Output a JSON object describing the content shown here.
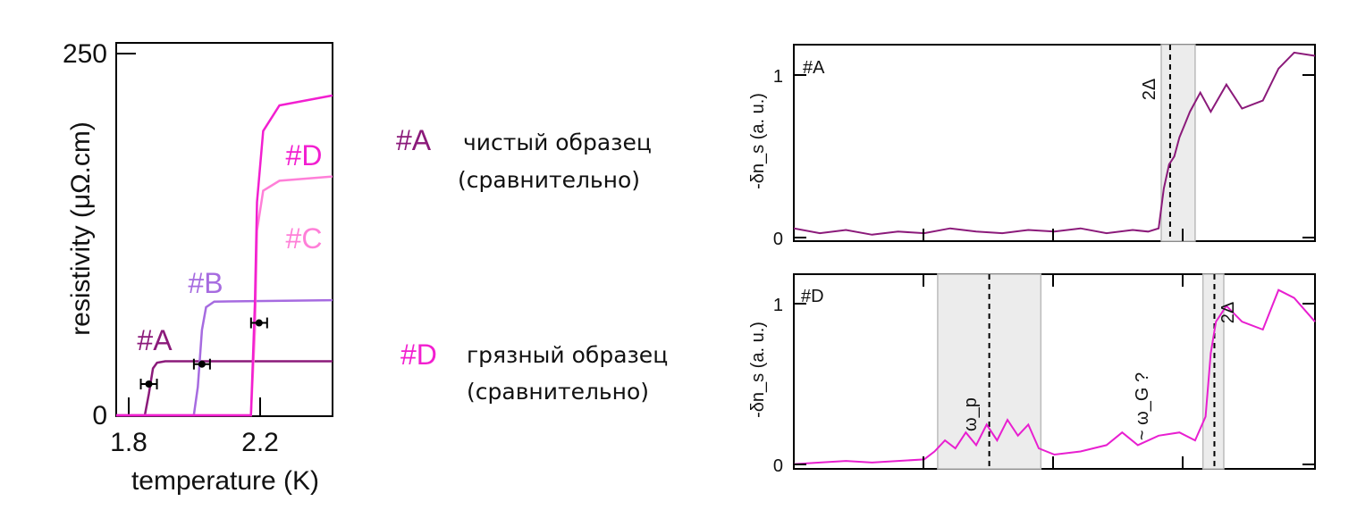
{
  "chart_data": [
    {
      "type": "line",
      "xlabel": "temperature (K)",
      "ylabel": "resistivity (μΩ.cm)",
      "xlim": [
        1.8,
        2.33
      ],
      "ylim": [
        0,
        262
      ],
      "xticks": [
        "1.8",
        "2.2"
      ],
      "yticks": [
        "0",
        "250"
      ],
      "series": [
        {
          "name": "#A",
          "color": "#8B1A7A",
          "x": [
            1.8,
            1.87,
            1.88,
            1.89,
            1.9,
            1.92,
            2.33
          ],
          "y": [
            0,
            0,
            15,
            33,
            37,
            38,
            38
          ]
        },
        {
          "name": "#B",
          "color": "#A66BE0",
          "x": [
            1.8,
            1.99,
            2.0,
            2.01,
            2.02,
            2.04,
            2.33
          ],
          "y": [
            0,
            0,
            20,
            60,
            76,
            80,
            81
          ]
        },
        {
          "name": "#C",
          "color": "#FF7FD8",
          "x": [
            1.8,
            2.13,
            2.14,
            2.145,
            2.16,
            2.2,
            2.33
          ],
          "y": [
            0,
            0,
            60,
            130,
            158,
            165,
            168
          ]
        },
        {
          "name": "#D",
          "color": "#F21FD0",
          "x": [
            1.8,
            2.13,
            2.14,
            2.145,
            2.16,
            2.2,
            2.33
          ],
          "y": [
            0,
            0,
            80,
            150,
            200,
            218,
            225
          ]
        }
      ],
      "error_points": [
        {
          "x": 1.88,
          "y": 22
        },
        {
          "x": 2.01,
          "y": 36
        },
        {
          "x": 2.15,
          "y": 65
        }
      ]
    },
    {
      "type": "line",
      "ylabel": "-δn_s (a. u.)",
      "ylim": [
        -0.03,
        1.2
      ],
      "yticks": [
        "0",
        "1"
      ],
      "label": "#A",
      "shaded_band": [
        0.705,
        0.77
      ],
      "band_marker_x": 0.722,
      "band_label": "2Δ",
      "series": [
        {
          "name": "#A",
          "color": "#8B1A7A",
          "x": [
            0,
            0.05,
            0.1,
            0.15,
            0.2,
            0.25,
            0.3,
            0.35,
            0.4,
            0.45,
            0.5,
            0.55,
            0.6,
            0.65,
            0.68,
            0.7,
            0.71,
            0.72,
            0.73,
            0.74,
            0.75,
            0.76,
            0.78,
            0.8,
            0.83,
            0.86,
            0.9,
            0.93,
            0.96,
            1.0
          ],
          "y": [
            0.05,
            0.02,
            0.04,
            0.01,
            0.03,
            0.02,
            0.05,
            0.03,
            0.02,
            0.04,
            0.03,
            0.05,
            0.02,
            0.04,
            0.03,
            0.05,
            0.3,
            0.45,
            0.5,
            0.62,
            0.7,
            0.78,
            0.9,
            0.78,
            0.95,
            0.8,
            0.85,
            1.05,
            1.15,
            1.13
          ]
        }
      ]
    },
    {
      "type": "line",
      "ylabel": "-δn_s (a. u.)",
      "ylim": [
        -0.03,
        1.2
      ],
      "yticks": [
        "0",
        "1"
      ],
      "label": "#D",
      "shaded_band": [
        0.276,
        0.474
      ],
      "band_marker_x": 0.375,
      "band_label": "ω_p",
      "second_band": [
        0.785,
        0.825
      ],
      "second_marker_x": 0.807,
      "second_label": "2Δ",
      "annotation": "~ ω_G ?",
      "series": [
        {
          "name": "#D",
          "color": "#E81FD0",
          "x": [
            0,
            0.05,
            0.1,
            0.15,
            0.2,
            0.25,
            0.27,
            0.29,
            0.31,
            0.33,
            0.35,
            0.37,
            0.39,
            0.41,
            0.43,
            0.45,
            0.47,
            0.5,
            0.55,
            0.6,
            0.63,
            0.66,
            0.7,
            0.74,
            0.77,
            0.79,
            0.8,
            0.81,
            0.83,
            0.86,
            0.9,
            0.93,
            0.96,
            1.0
          ],
          "y": [
            0.0,
            0.01,
            0.02,
            0.01,
            0.02,
            0.03,
            0.08,
            0.15,
            0.1,
            0.2,
            0.12,
            0.25,
            0.15,
            0.28,
            0.18,
            0.25,
            0.1,
            0.06,
            0.08,
            0.12,
            0.2,
            0.12,
            0.18,
            0.2,
            0.15,
            0.3,
            0.7,
            0.9,
            1.0,
            0.9,
            0.85,
            1.1,
            1.05,
            0.9
          ]
        }
      ]
    }
  ],
  "legend_notes": {
    "a": {
      "tag": "#A",
      "line1": "чистый образец",
      "line2": "(сравнительно)",
      "color": "#8B1A7A"
    },
    "d": {
      "tag": "#D",
      "line1": "грязный образец",
      "line2": "(сравнительно)",
      "color": "#F21FD0"
    }
  }
}
